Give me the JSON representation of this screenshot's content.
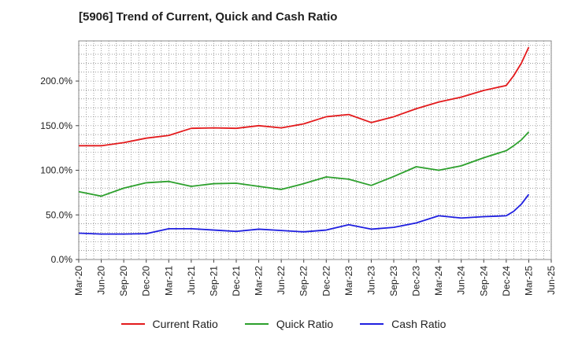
{
  "chart_data": {
    "type": "line",
    "title": "[5906]  Trend of Current, Quick and Cash Ratio",
    "xlabel": "",
    "ylabel": "",
    "ylim": [
      0,
      245
    ],
    "yticks": [
      0,
      50,
      100,
      150,
      200
    ],
    "ytick_labels": [
      "0.0%",
      "50.0%",
      "100.0%",
      "150.0%",
      "200.0%"
    ],
    "x_tick_labels": [
      "Mar-20",
      "Jun-20",
      "Sep-20",
      "Dec-20",
      "Mar-21",
      "Jun-21",
      "Sep-21",
      "Dec-21",
      "Mar-22",
      "Jun-22",
      "Sep-22",
      "Dec-22",
      "Mar-23",
      "Jun-23",
      "Sep-23",
      "Dec-23",
      "Mar-24",
      "Jun-24",
      "Sep-24",
      "Dec-24",
      "Mar-25",
      "Jun-25"
    ],
    "x": [
      "Mar-20",
      "Jun-20",
      "Sep-20",
      "Dec-20",
      "Mar-21",
      "Jun-21",
      "Sep-21",
      "Dec-21",
      "Mar-22",
      "Jun-22",
      "Sep-22",
      "Dec-22",
      "Mar-23",
      "Jun-23",
      "Sep-23",
      "Dec-23",
      "Mar-24",
      "Jun-24",
      "Sep-24",
      "Dec-24",
      "Jan-25",
      "Feb-25",
      "Mar-25"
    ],
    "x_index": [
      0,
      1,
      2,
      3,
      4,
      5,
      6,
      7,
      8,
      9,
      10,
      11,
      12,
      13,
      14,
      15,
      16,
      17,
      18,
      19,
      19.33,
      19.67,
      20
    ],
    "series": [
      {
        "name": "Current Ratio",
        "color": "#e31a1c",
        "values": [
          127.5,
          127.5,
          131,
          136,
          139,
          147,
          147.5,
          147,
          150,
          147.5,
          152,
          160,
          162.5,
          153.5,
          160,
          169,
          176.5,
          182,
          189.5,
          195,
          206,
          220,
          238
        ]
      },
      {
        "name": "Quick Ratio",
        "color": "#2ca02c",
        "values": [
          76,
          71,
          80,
          86,
          87.5,
          82,
          85,
          85.5,
          82,
          78.5,
          85,
          92.5,
          90,
          83,
          93,
          104,
          100,
          105,
          114,
          122,
          127.5,
          134,
          143
        ]
      },
      {
        "name": "Cash Ratio",
        "color": "#1f1fe0",
        "values": [
          29.5,
          28.5,
          28.5,
          29,
          34.5,
          34.5,
          33,
          31.5,
          34,
          32.5,
          31,
          33,
          39,
          34,
          36,
          41,
          49,
          46.5,
          48,
          49,
          54,
          62,
          73
        ]
      }
    ]
  },
  "legend": {
    "items": [
      {
        "label": "Current Ratio",
        "color": "#e31a1c"
      },
      {
        "label": "Quick Ratio",
        "color": "#2ca02c"
      },
      {
        "label": "Cash Ratio",
        "color": "#1f1fe0"
      }
    ]
  }
}
